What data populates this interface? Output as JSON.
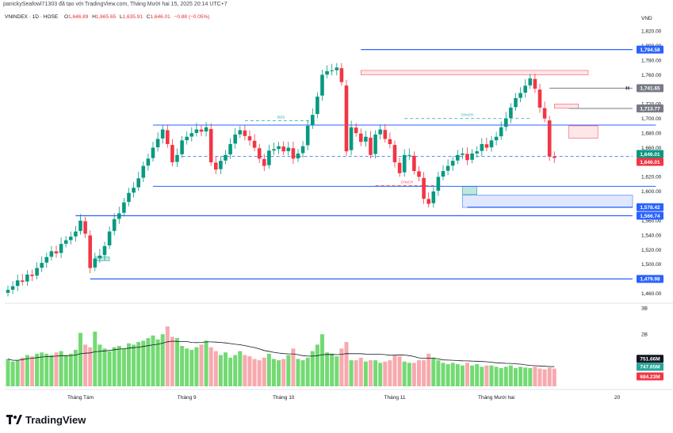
{
  "header": {
    "attribution": "panickySeafowl71303 đã tạo với TradingView.com, Tháng Mười hai 15, 2025 20:14 UTC+7"
  },
  "legend": {
    "symbol": "VNINDEX · 1D · HOSE",
    "o_label": "O",
    "o_value": "1,646.89",
    "h_label": "H",
    "h_value": "1,665.65",
    "l_label": "L",
    "l_value": "1,635.91",
    "c_label": "C",
    "c_value": "1,646.01",
    "change": "−0.88 (−0.05%)"
  },
  "brand": {
    "name": "TradingView"
  },
  "colors": {
    "up": "#26a69a",
    "up_bright": "#089981",
    "down": "#f23645",
    "blue_line": "#2962ff",
    "vol_up": "#5bd35b",
    "vol_down": "#f79aa0"
  },
  "chart_data": {
    "type": "candlestick",
    "y_unit": "VND",
    "ylim": [
      1450,
      1830
    ],
    "y_ticks": [
      1460,
      1480,
      1500,
      1520,
      1540,
      1560,
      1580,
      1600,
      1620,
      1640,
      1660,
      1680,
      1700,
      1720,
      1740,
      1760,
      1780,
      1800,
      1820
    ],
    "y_tick_labels": [
      "1,460.00",
      "1,480.00",
      "1,500.00",
      "1,520.00",
      "1,540.00",
      "1,560.00",
      "1,580.00",
      "1,600.00",
      "1,620.00",
      "1,640.00",
      "1,660.00",
      "1,680.00",
      "1,700.00",
      "1,720.00",
      "1,740.00",
      "1,760.00",
      "1,780.00",
      "1,800.00",
      "1,820.00"
    ],
    "x_labels": [
      {
        "label": "Tháng Tám",
        "index": 15
      },
      {
        "label": "Tháng 9",
        "index": 37
      },
      {
        "label": "Tháng 10",
        "index": 57
      },
      {
        "label": "Tháng 11",
        "index": 80
      },
      {
        "label": "Tháng Mười hai",
        "index": 101
      },
      {
        "label": "20",
        "index": 126
      }
    ],
    "closes": [
      1465,
      1470,
      1478,
      1476,
      1486,
      1484,
      1495,
      1502,
      1510,
      1518,
      1515,
      1528,
      1533,
      1538,
      1545,
      1560,
      1542,
      1495,
      1508,
      1512,
      1525,
      1545,
      1562,
      1570,
      1585,
      1598,
      1605,
      1618,
      1635,
      1645,
      1660,
      1672,
      1685,
      1665,
      1640,
      1650,
      1670,
      1675,
      1680,
      1685,
      1682,
      1688,
      1640,
      1630,
      1642,
      1650,
      1665,
      1678,
      1684,
      1676,
      1670,
      1660,
      1645,
      1635,
      1656,
      1658,
      1662,
      1655,
      1660,
      1645,
      1652,
      1662,
      1690,
      1705,
      1730,
      1760,
      1765,
      1766,
      1770,
      1750,
      1655,
      1688,
      1680,
      1668,
      1675,
      1650,
      1678,
      1685,
      1672,
      1665,
      1640,
      1625,
      1650,
      1650,
      1628,
      1620,
      1590,
      1583,
      1600,
      1620,
      1628,
      1635,
      1642,
      1650,
      1652,
      1643,
      1652,
      1655,
      1665,
      1660,
      1670,
      1675,
      1688,
      1700,
      1715,
      1728,
      1735,
      1745,
      1755,
      1741,
      1715,
      1700,
      1648,
      1646
    ],
    "volumes": [
      1.05,
      0.95,
      1.0,
      1.1,
      1.2,
      1.15,
      1.25,
      1.3,
      1.25,
      1.2,
      1.3,
      1.35,
      1.2,
      1.25,
      1.4,
      2.05,
      1.6,
      1.5,
      2.1,
      1.6,
      1.45,
      1.35,
      1.5,
      1.55,
      1.45,
      1.65,
      1.6,
      1.7,
      1.75,
      1.85,
      1.95,
      1.8,
      2.0,
      2.3,
      1.9,
      1.85,
      1.55,
      1.45,
      1.4,
      1.5,
      1.6,
      1.75,
      1.5,
      1.35,
      1.2,
      1.3,
      1.1,
      1.2,
      1.35,
      1.2,
      1.15,
      1.05,
      1.0,
      1.1,
      1.25,
      1.05,
      1.0,
      1.05,
      1.2,
      1.45,
      1.05,
      1.0,
      1.1,
      1.35,
      1.6,
      2.0,
      1.3,
      1.25,
      1.15,
      1.45,
      1.7,
      1.0,
      1.0,
      1.1,
      0.95,
      1.0,
      1.0,
      0.9,
      0.95,
      1.0,
      1.2,
      1.15,
      0.95,
      0.9,
      0.9,
      1.0,
      1.0,
      1.25,
      1.1,
      1.0,
      0.9,
      0.85,
      0.9,
      0.85,
      0.8,
      0.9,
      0.8,
      0.85,
      0.75,
      0.8,
      0.8,
      0.75,
      0.7,
      0.75,
      0.8,
      0.7,
      0.75,
      0.72,
      0.7,
      0.75,
      0.68,
      0.65,
      0.72,
      0.68
    ],
    "volume_axis": {
      "ticks": [
        2,
        3
      ],
      "tick_labels": [
        "2B",
        "3B"
      ],
      "unit": "B"
    },
    "volume_labels": [
      {
        "text": "751.66M",
        "value": 0.75166,
        "color": "#131722"
      },
      {
        "text": "747.65M",
        "value": 0.74765,
        "color": "#26a69a"
      },
      {
        "text": "684.23M",
        "value": 0.68423,
        "color": "#f23645"
      }
    ],
    "hlines": [
      {
        "value": 1794.58,
        "from": 73,
        "label": "1,794.58",
        "color": "#2962ff",
        "width": 1.2
      },
      {
        "value": 1578.42,
        "from": 95,
        "label": "1,578.42",
        "color": "#2962ff",
        "width": 1.2
      },
      {
        "value": 1566.74,
        "from": 14,
        "label": "1,566.74",
        "color": "#2962ff",
        "width": 1.2
      },
      {
        "value": 1479.98,
        "from": 17,
        "label": "1,479.98",
        "color": "#2962ff",
        "width": 1.2
      },
      {
        "value": 1691,
        "from": 30,
        "to": 134,
        "color": "#2962ff",
        "width": 1
      },
      {
        "value": 1607,
        "from": 30,
        "to": 134,
        "color": "#2962ff",
        "width": 1
      },
      {
        "value": 1741.65,
        "from": 112,
        "label": "1,741.65",
        "color": "#787b86",
        "width": 1,
        "prefix": "H"
      },
      {
        "value": 1713.77,
        "from": 116,
        "label": "1,713.77",
        "color": "#787b86",
        "width": 1
      }
    ],
    "dashed_lines": [
      {
        "value": 1648,
        "from": 36,
        "to": 134,
        "color": "#2962ff"
      },
      {
        "value": 1697,
        "from": 49,
        "to": 64,
        "color": "#26a69a",
        "text": "BOS"
      },
      {
        "value": 1700,
        "from": 82,
        "to": 108,
        "color": "#26a69a",
        "text": "CHoCH"
      },
      {
        "value": 1608,
        "from": 76,
        "to": 89,
        "color": "#f23645",
        "text": "CHoCH"
      }
    ],
    "price_labels": [
      {
        "text": "1,646.01",
        "value": 1646.01,
        "color": "#089981",
        "dy": -5
      },
      {
        "text": "1,646.01",
        "value": 1646.01,
        "color": "#f23645",
        "dy": 5
      }
    ],
    "zones": [
      {
        "from": 73,
        "to": 120,
        "y1": 1760,
        "y2": 1766,
        "kind": "red"
      },
      {
        "from": 116,
        "to": 122,
        "y1": 1673,
        "y2": 1690,
        "kind": "red"
      },
      {
        "from": 113,
        "to": 118,
        "y1": 1714,
        "y2": 1720,
        "kind": "red"
      },
      {
        "from": 94,
        "to": 134,
        "y1": 1578,
        "y2": 1595,
        "kind": "blue"
      },
      {
        "from": 94,
        "to": 97,
        "y1": 1596,
        "y2": 1607,
        "kind": "green"
      },
      {
        "from": 18,
        "to": 21,
        "y1": 1505,
        "y2": 1510,
        "kind": "green"
      }
    ]
  }
}
